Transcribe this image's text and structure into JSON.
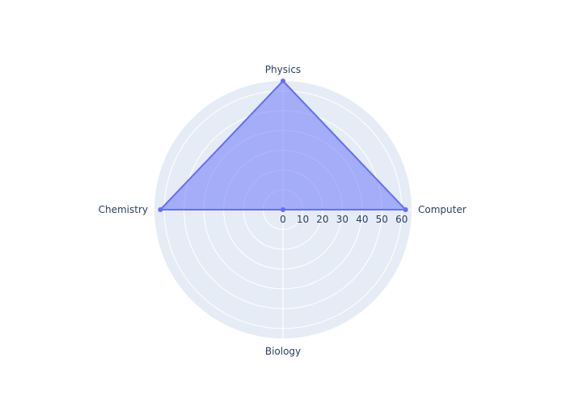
{
  "chart_data": {
    "type": "radar",
    "categories": [
      "Computer",
      "Physics",
      "Chemistry",
      "Biology"
    ],
    "series": [
      {
        "values": [
          62,
          65,
          62,
          0
        ],
        "color": "#636efa"
      }
    ],
    "radial_axis": {
      "range": [
        0,
        65
      ],
      "tick_values": [
        0,
        10,
        20,
        30,
        40,
        50,
        60
      ],
      "tick_labels": [
        "0",
        "10",
        "20",
        "30",
        "40",
        "50",
        "60"
      ]
    },
    "grid": true,
    "title": "",
    "colors": {
      "polar_bg": "#e5ecf6",
      "grid": "#ffffff",
      "text": "#2a3f5f",
      "fill": "rgba(99,110,250,0.5)"
    }
  }
}
